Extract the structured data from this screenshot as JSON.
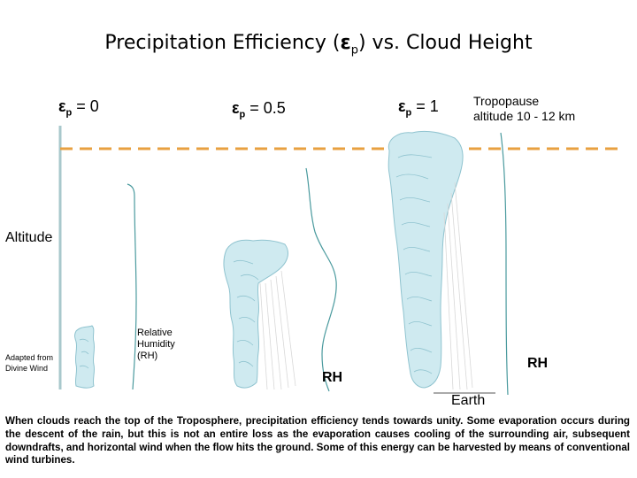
{
  "title": {
    "text": "Precipitation Efficiency (",
    "symbol": "ε",
    "subscript": "p",
    "suffix": ") vs. Cloud Height"
  },
  "eps_labels": [
    {
      "symbol": "ε",
      "subscript": "p",
      "value": " = 0"
    },
    {
      "symbol": "ε",
      "subscript": "p",
      "value": " = 0.5"
    },
    {
      "symbol": "ε",
      "subscript": "p",
      "value": " = 1"
    }
  ],
  "tropopause": {
    "line1": "Tropopause",
    "line2": "altitude 10 - 12 km"
  },
  "altitude_label": "Altitude",
  "adapted_note": "Adapted from Divine Wind",
  "rh_caption": {
    "line1": "Relative",
    "line2": "Humidity",
    "line3": "(RH)"
  },
  "rh_labels": [
    "RH",
    "RH"
  ],
  "earth_label": "Earth",
  "caption": "When clouds reach the top of the Troposphere, precipitation efficiency tends towards unity. Some evaporation occurs during the descent of the rain, but this is not an entire loss as the evaporation causes cooling of the surrounding air, subsequent downdrafts, and horizontal wind when the flow hits the ground. Some of this energy can be harvested by means of conventional wind turbines.",
  "colors": {
    "tropopause_line": "#e8a040",
    "cloud_fill": "#cfeaf0",
    "cloud_edge": "#8fc3cf",
    "rh_curve": "#4a9a9e",
    "axis": "#a8c8cc"
  }
}
